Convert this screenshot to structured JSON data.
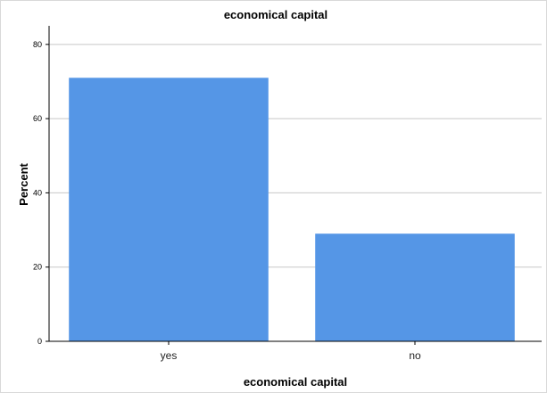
{
  "chart_data": {
    "type": "bar",
    "title": "economical capital",
    "xlabel": "economical capital",
    "ylabel": "Percent",
    "categories": [
      "yes",
      "no"
    ],
    "values": [
      71,
      29
    ],
    "ylim": [
      0,
      85
    ],
    "yticks": [
      0,
      20,
      40,
      60,
      80
    ],
    "grid": true,
    "bar_color": "#5596e6",
    "grid_color": "#c8c8c8"
  }
}
